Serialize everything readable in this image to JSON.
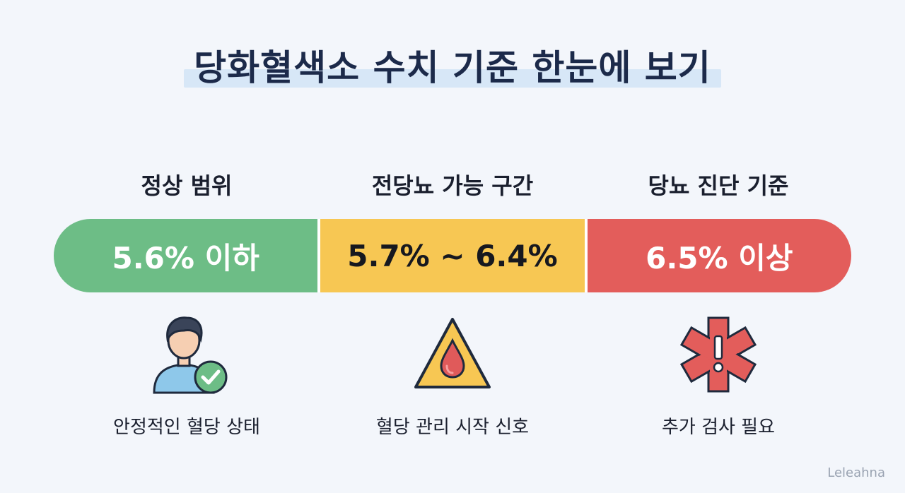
{
  "title": "당화혈색소 수치 기준 한눈에 보기",
  "categories": [
    {
      "label": "정상 범위",
      "range": "5.6% 이하",
      "description": "안정적인 혈당 상태",
      "icon": "person-check-icon",
      "color": "#6dbd86"
    },
    {
      "label": "전당뇨 가능 구간",
      "range": "5.7% ~ 6.4%",
      "description": "혈당 관리 시작 신호",
      "icon": "warning-blood-drop-icon",
      "color": "#f7c753"
    },
    {
      "label": "당뇨 진단 기준",
      "range": "6.5% 이상",
      "description": "추가 검사 필요",
      "icon": "medical-star-alert-icon",
      "color": "#e35d5b"
    }
  ],
  "credit": "Leleahna"
}
